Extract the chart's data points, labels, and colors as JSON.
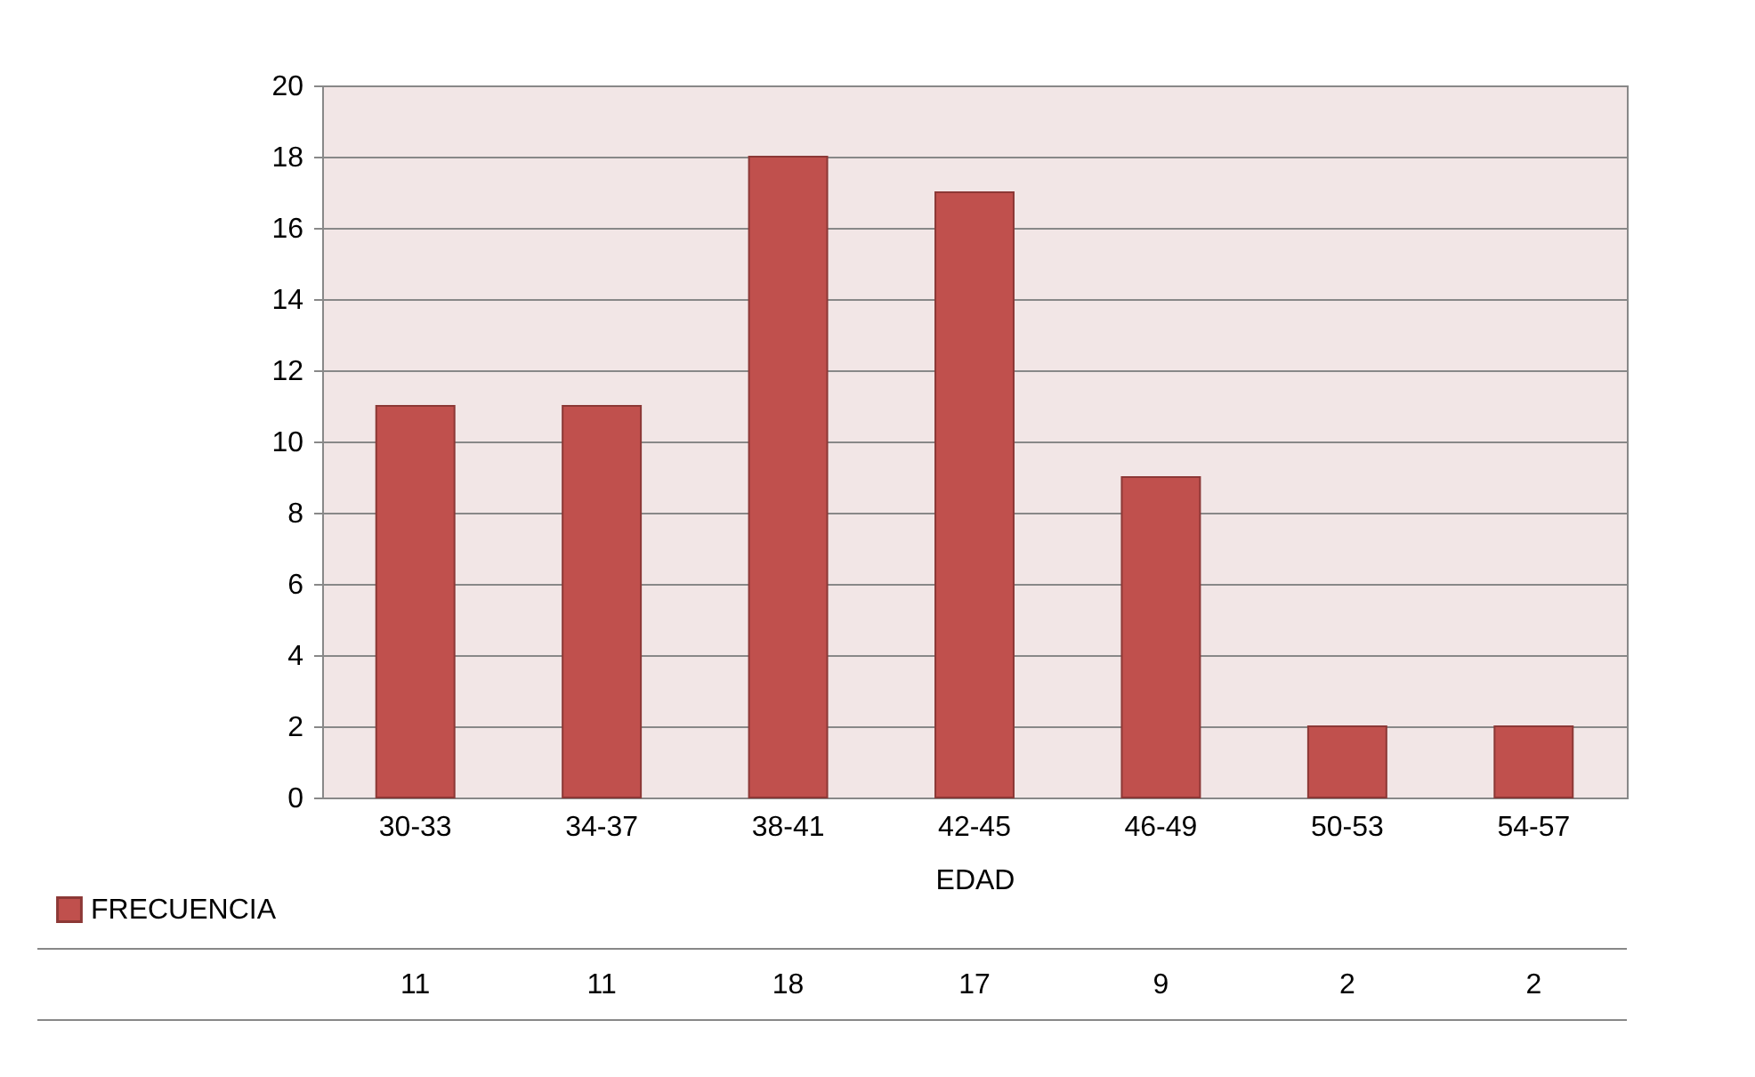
{
  "chart_data": {
    "type": "bar",
    "xlabel": "EDAD",
    "categories": [
      "30-33",
      "34-37",
      "38-41",
      "42-45",
      "46-49",
      "50-53",
      "54-57"
    ],
    "series": [
      {
        "name": "FRECUENCIA",
        "color": "#c0504d",
        "values": [
          11,
          11,
          18,
          17,
          9,
          2,
          2
        ]
      }
    ],
    "ylim": [
      0,
      20
    ],
    "yticks": [
      0,
      2,
      4,
      6,
      8,
      10,
      12,
      14,
      16,
      18,
      20
    ],
    "grid": "y",
    "legend": "bottom",
    "data_labels": true
  }
}
